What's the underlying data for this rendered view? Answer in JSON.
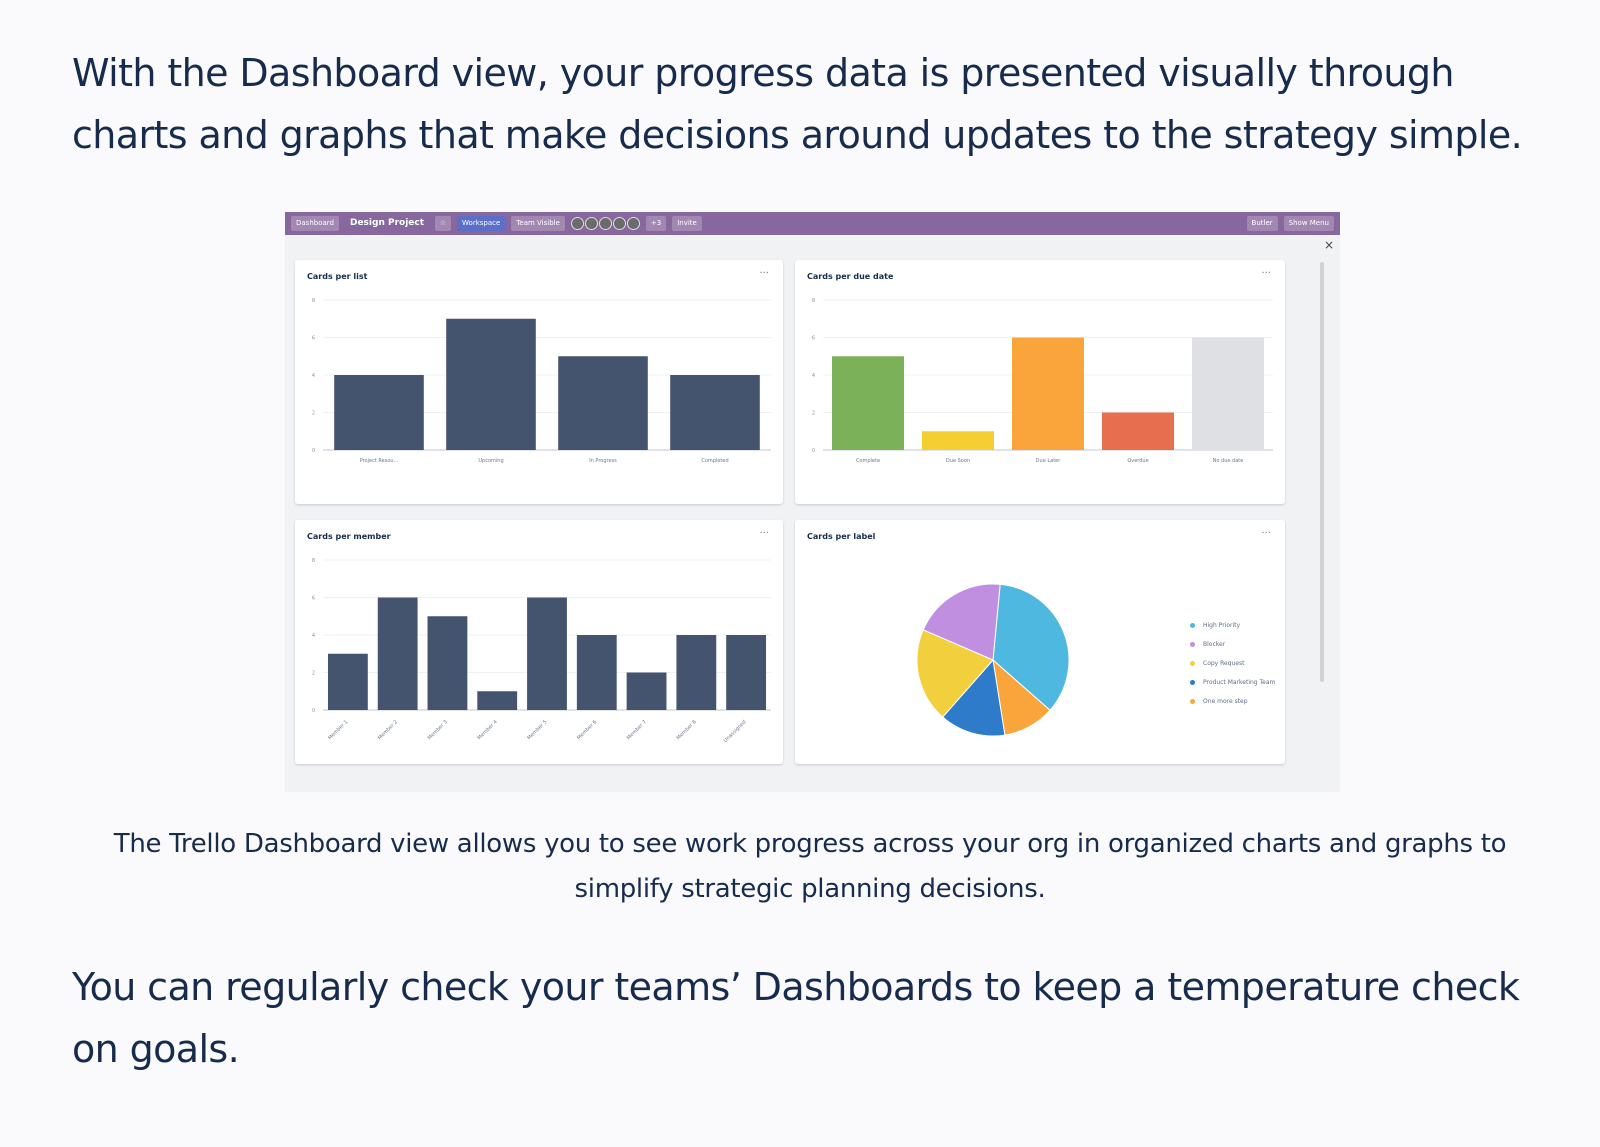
{
  "article": {
    "intro": "With the Dashboard view, your progress data is presented visually through charts and graphs that make decisions around updates to the strategy simple.",
    "caption": "The Trello Dashboard view allows you to see work progress across your org in organized charts and graphs to simplify strategic planning decisions.",
    "outro": "You can regularly check your teams’ Dashboards to keep a temperature check on goals."
  },
  "board": {
    "view_switcher": "Dashboard",
    "board_name": "Design Project",
    "workspace": "Workspace",
    "team_visible": "Team Visible",
    "member_count": "+3",
    "invite": "Invite",
    "butler": "Butler",
    "show_menu": "Show Menu",
    "close_icon": "×",
    "panel_menu_icon": "···"
  },
  "chart_data": [
    {
      "type": "bar",
      "title": "Cards per list",
      "categories": [
        "Project Resou...",
        "Upcoming",
        "In Progress",
        "Completed"
      ],
      "values": [
        4,
        7,
        5,
        4
      ],
      "ylim": [
        0,
        8
      ],
      "yticks": [
        "0",
        "2",
        "4",
        "6",
        "8"
      ],
      "color": "#44546f"
    },
    {
      "type": "bar",
      "title": "Cards per due date",
      "categories": [
        "Complete",
        "Due Soon",
        "Due Later",
        "Overdue",
        "No due date"
      ],
      "values": [
        5,
        1,
        6,
        2,
        6
      ],
      "colors": [
        "#7ab159",
        "#f5cf31",
        "#f9a53b",
        "#e76e4f",
        "#dfe0e3"
      ],
      "ylim": [
        0,
        8
      ],
      "yticks": [
        "0",
        "2",
        "4",
        "6",
        "8"
      ]
    },
    {
      "type": "bar",
      "title": "Cards per member",
      "categories": [
        "Member 1",
        "Member 2",
        "Member 3",
        "Member 4",
        "Member 5",
        "Member 6",
        "Member 7",
        "Member 8",
        "Unassigned"
      ],
      "values": [
        3,
        6,
        5,
        1,
        6,
        4,
        2,
        4,
        4
      ],
      "ylim": [
        0,
        8
      ],
      "yticks": [
        "0",
        "2",
        "4",
        "6",
        "8"
      ],
      "color": "#44546f"
    },
    {
      "type": "pie",
      "title": "Cards per label",
      "labels": [
        "High Priority",
        "Blocker",
        "Copy Request",
        "Product Marketing Team",
        "One more step"
      ],
      "values": [
        35,
        20,
        20,
        14,
        11
      ],
      "colors": [
        "#4fb8e0",
        "#c08fe0",
        "#f2cf3c",
        "#2d7bc9",
        "#f9a53b"
      ],
      "legend_colors": [
        "#4fb8e0",
        "#c08fe0",
        "#f2cf3c",
        "#2d7bc9",
        "#f9a53b"
      ]
    }
  ]
}
